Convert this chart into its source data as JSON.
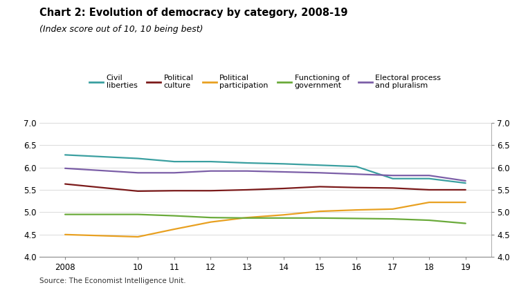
{
  "title": "Chart 2: Evolution of democracy by category, 2008-19",
  "subtitle": "(Index score out of 10, 10 being best)",
  "source": "Source: The Economist Intelligence Unit.",
  "x_values": [
    2008,
    2010,
    2011,
    2012,
    2013,
    2014,
    2015,
    2016,
    2017,
    2018,
    2019
  ],
  "x_labels": [
    "2008",
    "10",
    "11",
    "12",
    "13",
    "14",
    "15",
    "16",
    "17",
    "18",
    "19"
  ],
  "ylim": [
    4.0,
    7.0
  ],
  "yticks": [
    4.0,
    4.5,
    5.0,
    5.5,
    6.0,
    6.5,
    7.0
  ],
  "series": [
    {
      "name": "Civil\nliberties",
      "color": "#3a9fa0",
      "values": [
        6.28,
        6.2,
        6.13,
        6.13,
        6.1,
        6.08,
        6.05,
        6.02,
        5.75,
        5.75,
        5.65
      ]
    },
    {
      "name": "Political\nculture",
      "color": "#7b1a1a",
      "values": [
        5.63,
        5.47,
        5.48,
        5.48,
        5.5,
        5.53,
        5.57,
        5.55,
        5.54,
        5.5,
        5.5
      ]
    },
    {
      "name": "Political\nparticipation",
      "color": "#e8a020",
      "values": [
        4.5,
        4.45,
        4.62,
        4.78,
        4.88,
        4.94,
        5.02,
        5.05,
        5.07,
        5.22,
        5.22
      ]
    },
    {
      "name": "Functioning of\ngovernment",
      "color": "#6aaa3a",
      "values": [
        4.95,
        4.95,
        4.92,
        4.88,
        4.87,
        4.87,
        4.87,
        4.86,
        4.85,
        4.82,
        4.75
      ]
    },
    {
      "name": "Electoral process\nand pluralism",
      "color": "#7b5ea7",
      "values": [
        5.98,
        5.88,
        5.88,
        5.92,
        5.92,
        5.9,
        5.88,
        5.85,
        5.82,
        5.82,
        5.7
      ]
    }
  ],
  "background_color": "#ffffff",
  "title_fontsize": 10.5,
  "subtitle_fontsize": 9,
  "tick_fontsize": 8.5,
  "legend_fontsize": 8,
  "source_fontsize": 7.5
}
